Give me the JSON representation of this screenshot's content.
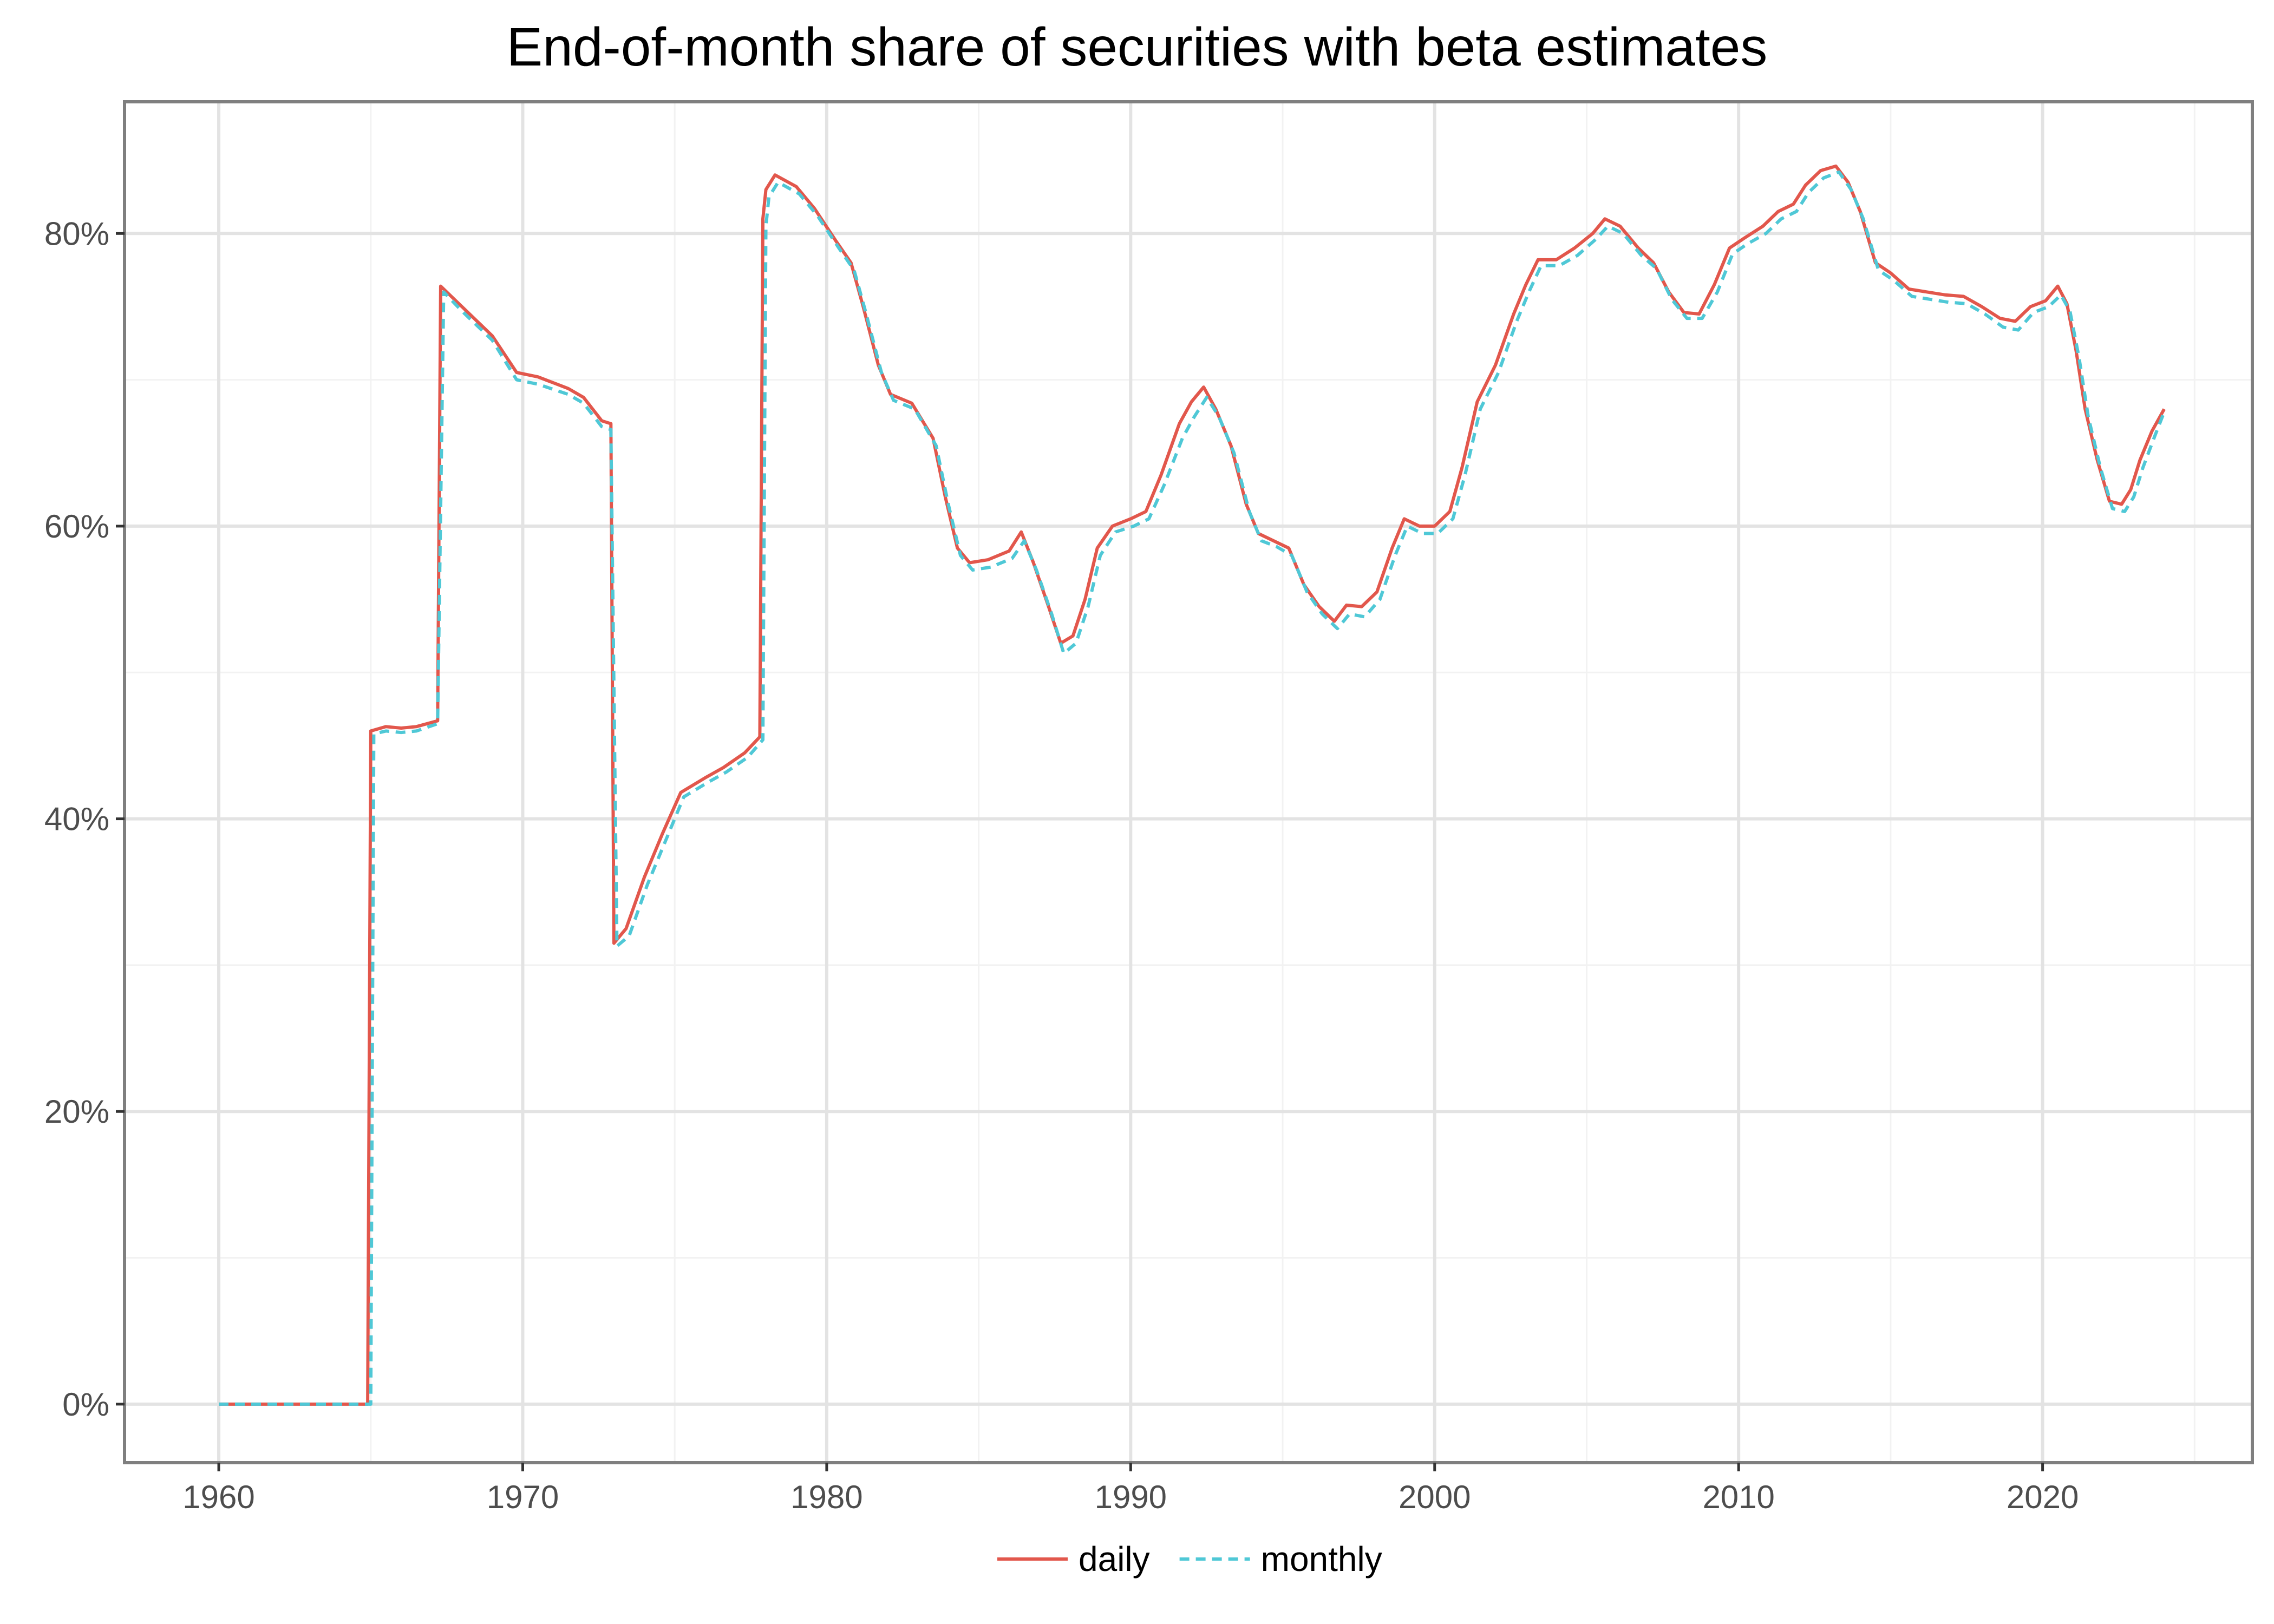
{
  "chart_data": {
    "type": "line",
    "title": "End-of-month share of securities with beta estimates",
    "xlabel": "",
    "ylabel": "",
    "xlim": [
      1956.9,
      2026.9
    ],
    "ylim": [
      -0.04,
      0.89
    ],
    "x_ticks": [
      1960,
      1970,
      1980,
      1990,
      2000,
      2010,
      2020
    ],
    "x_tick_labels": [
      "1960",
      "1970",
      "1980",
      "1990",
      "2000",
      "2010",
      "2020"
    ],
    "y_ticks": [
      0,
      0.2,
      0.4,
      0.6,
      0.8
    ],
    "y_tick_labels": [
      "0%",
      "20%",
      "40%",
      "60%",
      "80%"
    ],
    "grid": true,
    "legend_position": "bottom",
    "series": [
      {
        "name": "daily",
        "color": "#e2574c",
        "dash": "solid",
        "points": [
          [
            1960.0,
            0.0
          ],
          [
            1964.9,
            0.0
          ],
          [
            1965.0,
            0.46
          ],
          [
            1965.5,
            0.463
          ],
          [
            1966.0,
            0.462
          ],
          [
            1966.5,
            0.463
          ],
          [
            1967.2,
            0.467
          ],
          [
            1967.3,
            0.764
          ],
          [
            1968.0,
            0.75
          ],
          [
            1969.0,
            0.73
          ],
          [
            1969.8,
            0.705
          ],
          [
            1970.5,
            0.702
          ],
          [
            1971.5,
            0.694
          ],
          [
            1972.0,
            0.688
          ],
          [
            1972.3,
            0.68
          ],
          [
            1972.6,
            0.672
          ],
          [
            1972.9,
            0.67
          ],
          [
            1973.0,
            0.315
          ],
          [
            1973.4,
            0.325
          ],
          [
            1974.0,
            0.36
          ],
          [
            1974.6,
            0.39
          ],
          [
            1975.2,
            0.418
          ],
          [
            1976.0,
            0.428
          ],
          [
            1976.6,
            0.435
          ],
          [
            1977.3,
            0.445
          ],
          [
            1977.8,
            0.456
          ],
          [
            1977.9,
            0.81
          ],
          [
            1978.0,
            0.83
          ],
          [
            1978.3,
            0.84
          ],
          [
            1979.0,
            0.832
          ],
          [
            1979.6,
            0.817
          ],
          [
            1980.3,
            0.795
          ],
          [
            1980.8,
            0.78
          ],
          [
            1981.2,
            0.75
          ],
          [
            1981.7,
            0.71
          ],
          [
            1982.1,
            0.69
          ],
          [
            1982.8,
            0.684
          ],
          [
            1983.5,
            0.66
          ],
          [
            1983.9,
            0.62
          ],
          [
            1984.3,
            0.585
          ],
          [
            1984.7,
            0.575
          ],
          [
            1985.3,
            0.577
          ],
          [
            1986.0,
            0.583
          ],
          [
            1986.4,
            0.596
          ],
          [
            1986.8,
            0.575
          ],
          [
            1987.3,
            0.545
          ],
          [
            1987.7,
            0.52
          ],
          [
            1988.1,
            0.525
          ],
          [
            1988.5,
            0.55
          ],
          [
            1988.9,
            0.585
          ],
          [
            1989.4,
            0.6
          ],
          [
            1990.0,
            0.605
          ],
          [
            1990.5,
            0.61
          ],
          [
            1991.0,
            0.635
          ],
          [
            1991.6,
            0.67
          ],
          [
            1992.0,
            0.685
          ],
          [
            1992.4,
            0.695
          ],
          [
            1992.8,
            0.68
          ],
          [
            1993.3,
            0.655
          ],
          [
            1993.8,
            0.615
          ],
          [
            1994.2,
            0.595
          ],
          [
            1994.7,
            0.59
          ],
          [
            1995.2,
            0.585
          ],
          [
            1995.7,
            0.56
          ],
          [
            1996.2,
            0.545
          ],
          [
            1996.7,
            0.535
          ],
          [
            1997.1,
            0.546
          ],
          [
            1997.6,
            0.545
          ],
          [
            1998.1,
            0.555
          ],
          [
            1998.6,
            0.585
          ],
          [
            1999.0,
            0.605
          ],
          [
            1999.5,
            0.6
          ],
          [
            2000.0,
            0.6
          ],
          [
            2000.5,
            0.61
          ],
          [
            2000.9,
            0.64
          ],
          [
            2001.4,
            0.685
          ],
          [
            2002.0,
            0.71
          ],
          [
            2002.6,
            0.745
          ],
          [
            2003.0,
            0.765
          ],
          [
            2003.4,
            0.782
          ],
          [
            2004.0,
            0.782
          ],
          [
            2004.6,
            0.79
          ],
          [
            2005.2,
            0.8
          ],
          [
            2005.6,
            0.81
          ],
          [
            2006.1,
            0.805
          ],
          [
            2006.7,
            0.79
          ],
          [
            2007.2,
            0.78
          ],
          [
            2007.7,
            0.76
          ],
          [
            2008.2,
            0.746
          ],
          [
            2008.7,
            0.745
          ],
          [
            2009.2,
            0.765
          ],
          [
            2009.7,
            0.79
          ],
          [
            2010.2,
            0.797
          ],
          [
            2010.8,
            0.805
          ],
          [
            2011.3,
            0.815
          ],
          [
            2011.8,
            0.82
          ],
          [
            2012.2,
            0.833
          ],
          [
            2012.7,
            0.843
          ],
          [
            2013.2,
            0.846
          ],
          [
            2013.6,
            0.835
          ],
          [
            2014.0,
            0.815
          ],
          [
            2014.5,
            0.78
          ],
          [
            2015.0,
            0.773
          ],
          [
            2015.6,
            0.762
          ],
          [
            2016.2,
            0.76
          ],
          [
            2016.8,
            0.758
          ],
          [
            2017.4,
            0.757
          ],
          [
            2018.0,
            0.75
          ],
          [
            2018.6,
            0.742
          ],
          [
            2019.1,
            0.74
          ],
          [
            2019.6,
            0.75
          ],
          [
            2020.1,
            0.754
          ],
          [
            2020.5,
            0.764
          ],
          [
            2020.8,
            0.752
          ],
          [
            2021.1,
            0.72
          ],
          [
            2021.4,
            0.68
          ],
          [
            2021.8,
            0.645
          ],
          [
            2022.2,
            0.617
          ],
          [
            2022.6,
            0.615
          ],
          [
            2022.9,
            0.625
          ],
          [
            2023.2,
            0.645
          ],
          [
            2023.6,
            0.665
          ],
          [
            2024.0,
            0.68
          ]
        ]
      },
      {
        "name": "monthly",
        "color": "#4fc8d6",
        "dash": "dashed",
        "points": [
          [
            1960.0,
            0.0
          ],
          [
            1965.0,
            0.0
          ],
          [
            1965.1,
            0.458
          ],
          [
            1965.5,
            0.46
          ],
          [
            1966.0,
            0.459
          ],
          [
            1966.5,
            0.46
          ],
          [
            1967.2,
            0.465
          ],
          [
            1967.4,
            0.76
          ],
          [
            1968.0,
            0.747
          ],
          [
            1969.0,
            0.727
          ],
          [
            1969.8,
            0.7
          ],
          [
            1970.5,
            0.697
          ],
          [
            1971.5,
            0.69
          ],
          [
            1972.0,
            0.684
          ],
          [
            1972.3,
            0.676
          ],
          [
            1972.6,
            0.668
          ],
          [
            1972.9,
            0.666
          ],
          [
            1973.1,
            0.313
          ],
          [
            1973.5,
            0.32
          ],
          [
            1974.1,
            0.355
          ],
          [
            1974.7,
            0.385
          ],
          [
            1975.3,
            0.415
          ],
          [
            1976.1,
            0.425
          ],
          [
            1976.7,
            0.432
          ],
          [
            1977.4,
            0.442
          ],
          [
            1977.9,
            0.454
          ],
          [
            1978.0,
            0.805
          ],
          [
            1978.1,
            0.825
          ],
          [
            1978.4,
            0.835
          ],
          [
            1979.1,
            0.827
          ],
          [
            1979.7,
            0.812
          ],
          [
            1980.4,
            0.79
          ],
          [
            1980.9,
            0.775
          ],
          [
            1981.3,
            0.745
          ],
          [
            1981.8,
            0.705
          ],
          [
            1982.2,
            0.686
          ],
          [
            1982.9,
            0.68
          ],
          [
            1983.6,
            0.655
          ],
          [
            1984.0,
            0.615
          ],
          [
            1984.4,
            0.58
          ],
          [
            1984.8,
            0.57
          ],
          [
            1985.4,
            0.572
          ],
          [
            1986.1,
            0.578
          ],
          [
            1986.5,
            0.59
          ],
          [
            1986.9,
            0.57
          ],
          [
            1987.4,
            0.54
          ],
          [
            1987.8,
            0.513
          ],
          [
            1988.2,
            0.52
          ],
          [
            1988.6,
            0.545
          ],
          [
            1989.0,
            0.58
          ],
          [
            1989.5,
            0.596
          ],
          [
            1990.1,
            0.6
          ],
          [
            1990.6,
            0.605
          ],
          [
            1991.1,
            0.628
          ],
          [
            1991.7,
            0.66
          ],
          [
            1992.1,
            0.675
          ],
          [
            1992.5,
            0.688
          ],
          [
            1992.9,
            0.675
          ],
          [
            1993.4,
            0.65
          ],
          [
            1993.9,
            0.61
          ],
          [
            1994.3,
            0.59
          ],
          [
            1994.8,
            0.586
          ],
          [
            1995.3,
            0.58
          ],
          [
            1995.8,
            0.555
          ],
          [
            1996.3,
            0.54
          ],
          [
            1996.8,
            0.53
          ],
          [
            1997.2,
            0.54
          ],
          [
            1997.7,
            0.538
          ],
          [
            1998.2,
            0.55
          ],
          [
            1998.7,
            0.58
          ],
          [
            1999.1,
            0.6
          ],
          [
            1999.6,
            0.595
          ],
          [
            2000.1,
            0.595
          ],
          [
            2000.6,
            0.605
          ],
          [
            2001.0,
            0.635
          ],
          [
            2001.5,
            0.68
          ],
          [
            2002.1,
            0.705
          ],
          [
            2002.7,
            0.74
          ],
          [
            2003.1,
            0.76
          ],
          [
            2003.5,
            0.778
          ],
          [
            2004.1,
            0.778
          ],
          [
            2004.7,
            0.785
          ],
          [
            2005.3,
            0.796
          ],
          [
            2005.7,
            0.805
          ],
          [
            2006.2,
            0.8
          ],
          [
            2006.8,
            0.785
          ],
          [
            2007.3,
            0.776
          ],
          [
            2007.8,
            0.755
          ],
          [
            2008.3,
            0.742
          ],
          [
            2008.8,
            0.742
          ],
          [
            2009.3,
            0.76
          ],
          [
            2009.8,
            0.786
          ],
          [
            2010.3,
            0.793
          ],
          [
            2010.9,
            0.8
          ],
          [
            2011.4,
            0.81
          ],
          [
            2011.9,
            0.815
          ],
          [
            2012.3,
            0.828
          ],
          [
            2012.8,
            0.838
          ],
          [
            2013.3,
            0.842
          ],
          [
            2013.7,
            0.83
          ],
          [
            2014.1,
            0.81
          ],
          [
            2014.6,
            0.775
          ],
          [
            2015.1,
            0.768
          ],
          [
            2015.7,
            0.757
          ],
          [
            2016.3,
            0.755
          ],
          [
            2016.9,
            0.753
          ],
          [
            2017.5,
            0.752
          ],
          [
            2018.1,
            0.745
          ],
          [
            2018.7,
            0.736
          ],
          [
            2019.2,
            0.734
          ],
          [
            2019.7,
            0.746
          ],
          [
            2020.2,
            0.75
          ],
          [
            2020.6,
            0.758
          ],
          [
            2020.9,
            0.747
          ],
          [
            2021.2,
            0.715
          ],
          [
            2021.5,
            0.675
          ],
          [
            2021.9,
            0.64
          ],
          [
            2022.3,
            0.612
          ],
          [
            2022.7,
            0.61
          ],
          [
            2023.0,
            0.62
          ],
          [
            2023.3,
            0.64
          ],
          [
            2023.7,
            0.662
          ],
          [
            2024.0,
            0.678
          ]
        ]
      }
    ]
  }
}
